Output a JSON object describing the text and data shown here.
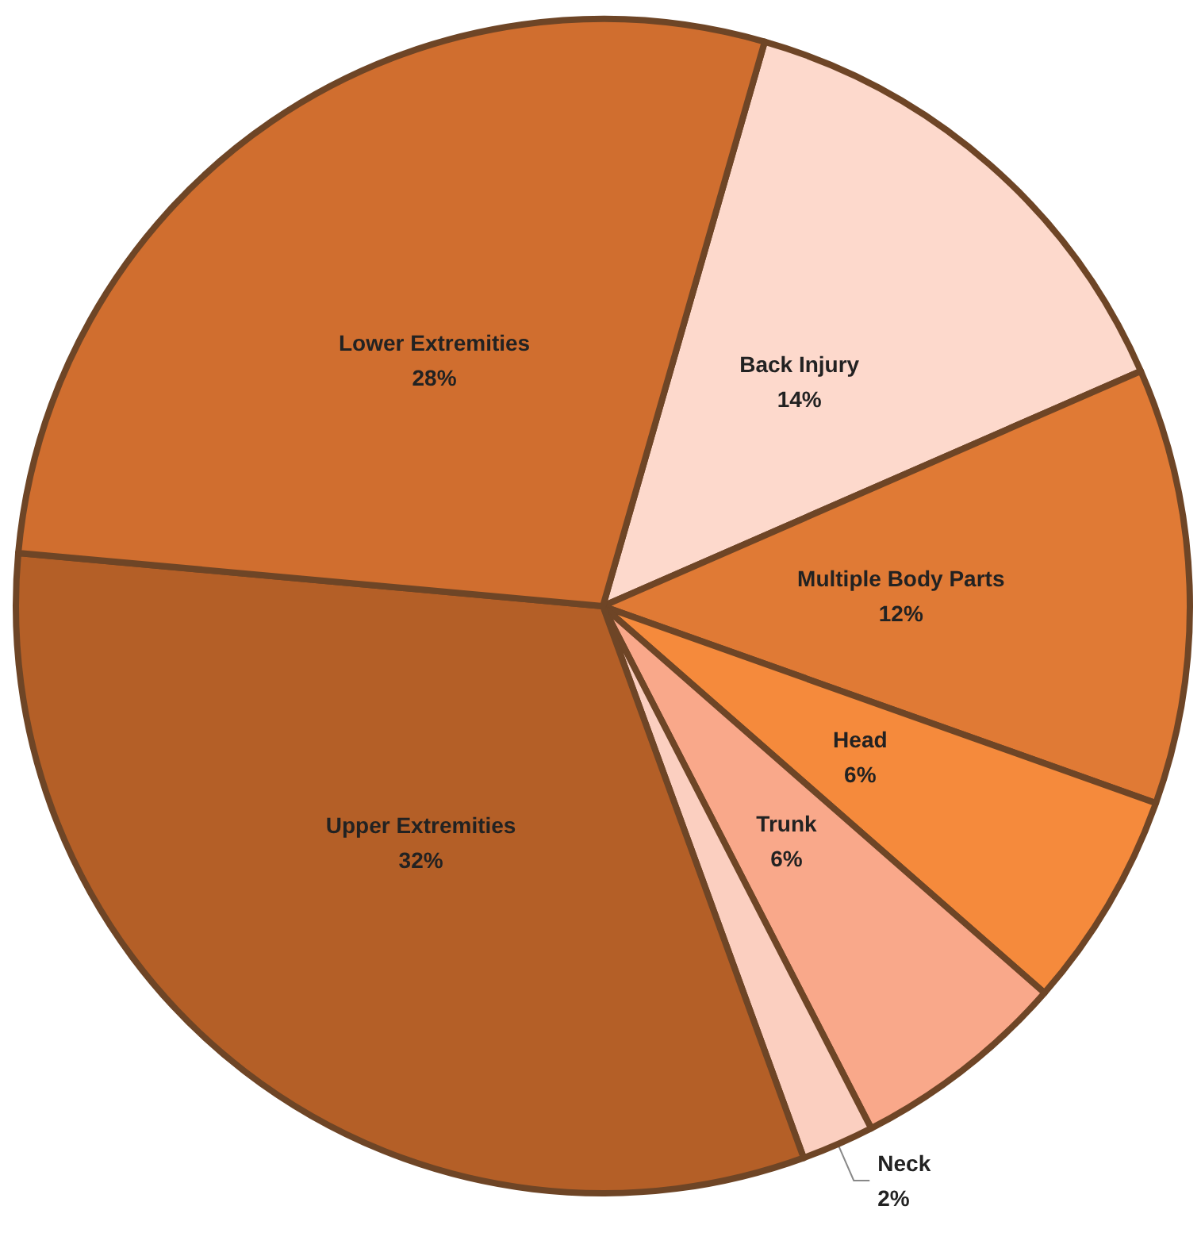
{
  "chart_data": {
    "type": "pie",
    "categories": [
      "Back Injury",
      "Multiple Body Parts",
      "Head",
      "Trunk",
      "Neck",
      "Upper Extremities",
      "Lower Extremities"
    ],
    "values": [
      14,
      12,
      6,
      6,
      2,
      32,
      28
    ],
    "value_labels": [
      "14%",
      "12%",
      "6%",
      "6%",
      "2%",
      "32%",
      "28%"
    ],
    "colors": [
      "#fdd9cc",
      "#e07a35",
      "#f58a3c",
      "#f9a88a",
      "#fbcfc0",
      "#b45f27",
      "#d06e2f"
    ],
    "legend": false
  }
}
